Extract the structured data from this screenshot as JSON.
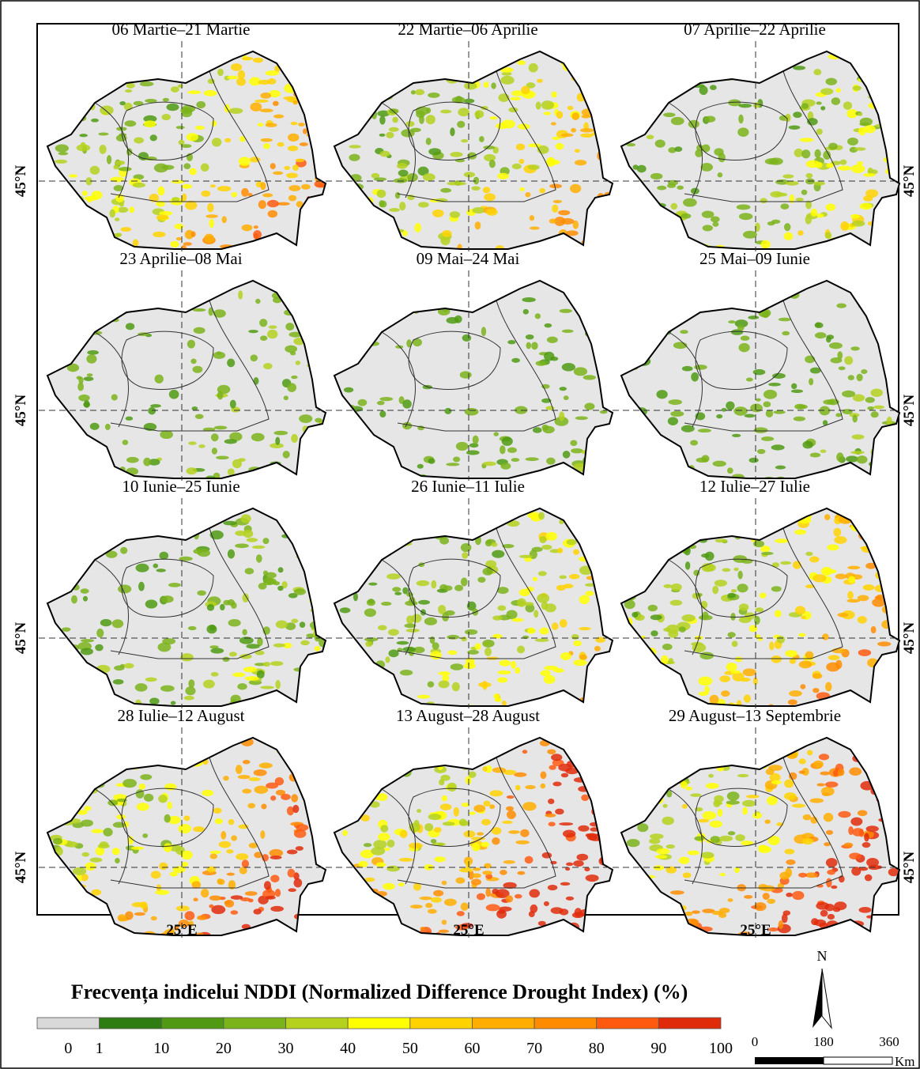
{
  "figure": {
    "panels": [
      {
        "title": "06 Martie–21 Martie"
      },
      {
        "title": "22 Martie–06 Aprilie"
      },
      {
        "title": "07 Aprilie–22 Aprilie"
      },
      {
        "title": "23 Aprilie–08 Mai"
      },
      {
        "title": "09 Mai–24 Mai"
      },
      {
        "title": "25 Mai–09 Iunie"
      },
      {
        "title": "10 Iunie–25 Iunie"
      },
      {
        "title": "26 Iunie–11 Iulie"
      },
      {
        "title": "12 Iulie–27 Iulie"
      },
      {
        "title": "28 Iulie–12 August"
      },
      {
        "title": "13 August–28 August"
      },
      {
        "title": "29 August–13 Septembrie"
      }
    ],
    "latitude_label": "45°N",
    "longitude_label": "25°E"
  },
  "legend": {
    "title": "Frecvența indicelui NDDI (Normalized Difference Drought Index) (%)",
    "ticks": [
      0,
      1,
      10,
      20,
      30,
      40,
      50,
      60,
      70,
      80,
      90,
      100
    ],
    "colors": [
      "#d9d9d9",
      "#2e7d12",
      "#4f9a12",
      "#7bb31a",
      "#b5d11e",
      "#ffff00",
      "#ffd200",
      "#ffae00",
      "#ff8c00",
      "#ff5a10",
      "#e02b0a"
    ]
  },
  "scale_bar": {
    "labels": [
      0,
      180,
      360
    ],
    "unit": "Km"
  },
  "north": "N"
}
